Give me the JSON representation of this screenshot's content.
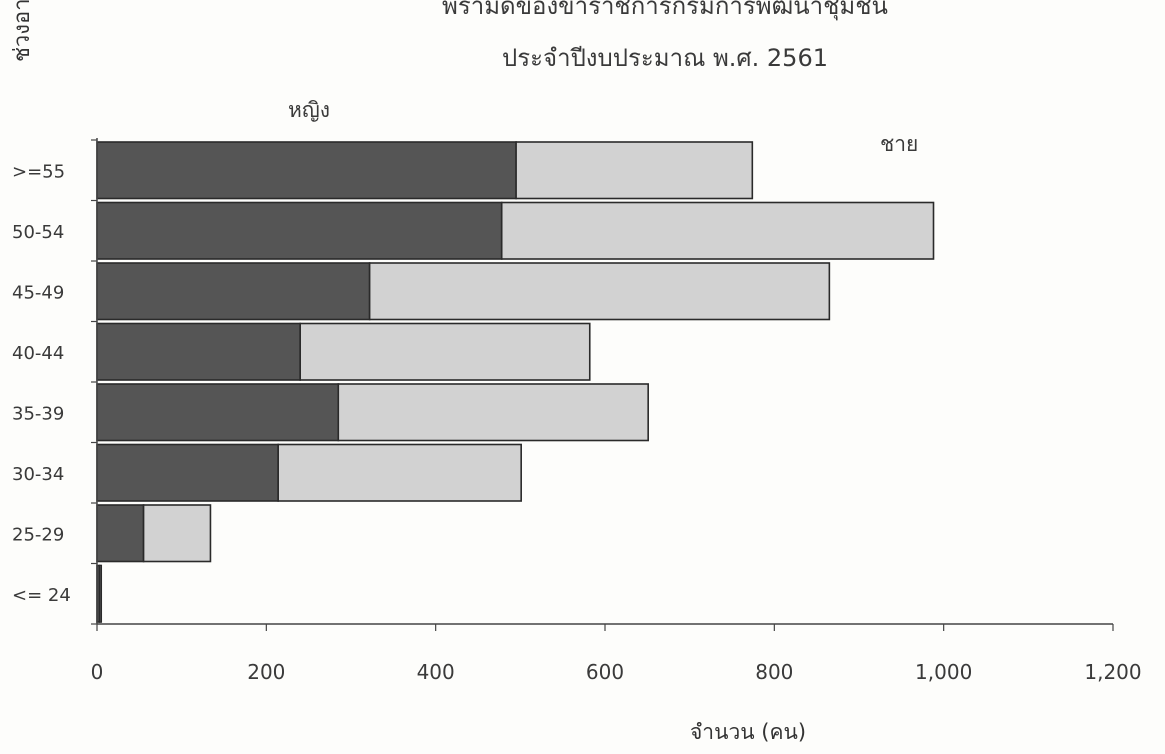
{
  "chart_data": {
    "type": "bar",
    "orientation": "horizontal",
    "stacked": true,
    "title_lines": [
      "พีรามิดของข้าราชการกรมการพัฒนาชุมชน",
      "ประจำปีงบประมาณ พ.ศ. 2561"
    ],
    "ylabel": "ช่วงอายุ",
    "xlabel": "จำนวน (คน)",
    "categories": [
      ">=55",
      "50-54",
      "45-49",
      "40-44",
      "35-39",
      "30-34",
      "25-29",
      "<= 24"
    ],
    "series": [
      {
        "name": "หญิง",
        "values": [
          495,
          478,
          322,
          240,
          285,
          214,
          55,
          3
        ],
        "color": "#555555"
      },
      {
        "name": "ชาย",
        "values": [
          279,
          510,
          543,
          342,
          366,
          287,
          79,
          2
        ],
        "color": "#d2d2d2"
      }
    ],
    "xlim": [
      0,
      1200
    ],
    "xticks": [
      "0",
      "200",
      "400",
      "600",
      "800",
      "1,000",
      "1,200"
    ],
    "grid": false
  }
}
